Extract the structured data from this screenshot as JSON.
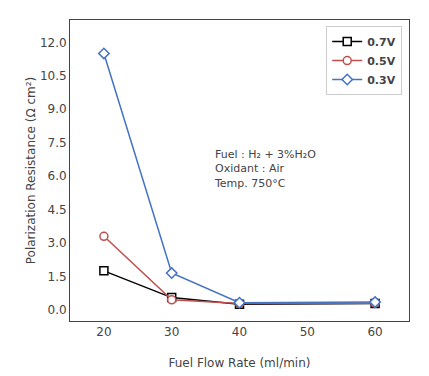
{
  "chart_data": {
    "type": "line",
    "x": [
      20,
      30,
      40,
      60
    ],
    "series": [
      {
        "name": "0.7V",
        "color": "#000000",
        "marker": "square",
        "values": [
          1.75,
          0.55,
          0.25,
          0.28
        ]
      },
      {
        "name": "0.5V",
        "color": "#c0504d",
        "marker": "circle",
        "values": [
          3.3,
          0.45,
          0.28,
          0.3
        ]
      },
      {
        "name": "0.3V",
        "color": "#4472c4",
        "marker": "diamond",
        "values": [
          11.5,
          1.65,
          0.32,
          0.35
        ]
      }
    ],
    "xlabel": "Fuel Flow Rate (ml/min)",
    "ylabel": "Polarization Resistance (Ω cm²)",
    "xlim": [
      15,
      65
    ],
    "ylim": [
      -0.5,
      13.0
    ],
    "xticks": [
      20,
      30,
      40,
      50,
      60
    ],
    "yticks": [
      {
        "value": 0.0,
        "label": "0.0"
      },
      1.5,
      {
        "value": 3.0,
        "label": "3.0"
      },
      4.5,
      {
        "value": 6.0,
        "label": "6.0"
      },
      7.5,
      {
        "value": 9.0,
        "label": "9.0"
      },
      10.5,
      {
        "value": 12.0,
        "label": "12.0"
      }
    ],
    "annotation": [
      "Fuel : H₂ + 3%H₂O",
      "Oxidant : Air",
      "Temp. 750°C"
    ],
    "legend": "upper right",
    "grid": false
  }
}
